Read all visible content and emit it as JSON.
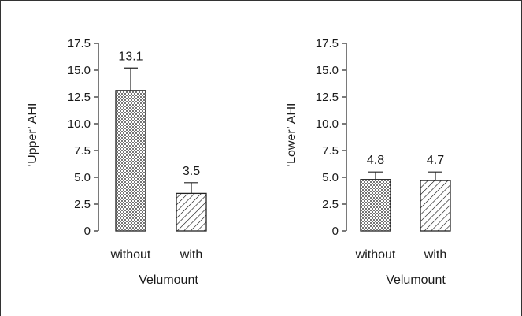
{
  "chart_data": [
    {
      "type": "bar",
      "ylabel": "‘Upper’ AHI",
      "xlabel": "Velumount",
      "categories": [
        "without",
        "with"
      ],
      "values": [
        13.1,
        3.5
      ],
      "error_upper": [
        15.2,
        4.5
      ],
      "value_labels": [
        "13.1",
        "3.5"
      ],
      "bar_patterns": [
        "dotted",
        "hatched"
      ],
      "ylim": [
        0,
        17.5
      ],
      "yticks": [
        "0",
        "2.5",
        "5.0",
        "7.5",
        "10.0",
        "12.5",
        "15.0",
        "17.5"
      ],
      "grid": false
    },
    {
      "type": "bar",
      "ylabel": "‘Lower’ AHI",
      "xlabel": "Velumount",
      "categories": [
        "without",
        "with"
      ],
      "values": [
        4.8,
        4.7
      ],
      "error_upper": [
        5.5,
        5.5
      ],
      "value_labels": [
        "4.8",
        "4.7"
      ],
      "bar_patterns": [
        "dotted",
        "hatched"
      ],
      "ylim": [
        0,
        17.5
      ],
      "yticks": [
        "0",
        "2.5",
        "5.0",
        "7.5",
        "10.0",
        "12.5",
        "15.0",
        "17.5"
      ],
      "grid": false
    }
  ]
}
